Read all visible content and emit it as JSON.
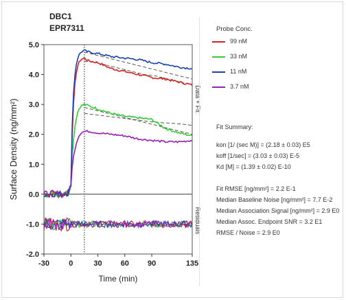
{
  "chart_data": {
    "type": "line",
    "title_lines": [
      "DBC1",
      "EPR7311"
    ],
    "xlabel": "Time (min)",
    "ylabel": "Surface Density (ng/mm²)",
    "xlim": [
      -30,
      135
    ],
    "ylim": [
      -2.0,
      5.0
    ],
    "x_ticks": [
      "-30",
      "0",
      "30",
      "60",
      "90",
      "135"
    ],
    "y_ticks": [
      "5.0",
      "4.0",
      "3.0",
      "2.0",
      "1.0",
      "0.0",
      "-1.0",
      "-2.0"
    ],
    "upper_panel_label": "Data + Fit",
    "lower_panel_label": "Residuals",
    "injection_end_x": 15,
    "legend_title": "Probe Conc.",
    "series": [
      {
        "name": "99 nM",
        "color": "#d42020",
        "x": [
          -30,
          -20,
          -10,
          -3,
          0,
          2,
          5,
          8,
          11,
          15,
          20,
          30,
          45,
          60,
          75,
          90,
          105,
          120,
          135
        ],
        "y": [
          0.0,
          0.02,
          0.0,
          0.05,
          0.3,
          2.6,
          3.9,
          4.35,
          4.5,
          4.55,
          4.45,
          4.4,
          4.2,
          4.1,
          4.0,
          3.9,
          3.85,
          3.75,
          3.65
        ],
        "fit_y": [
          4.45,
          4.4,
          4.3,
          4.2,
          4.1,
          4.0,
          3.95,
          3.85,
          3.75,
          3.65
        ]
      },
      {
        "name": "33 nM",
        "color": "#33cc33",
        "x": [
          -30,
          -20,
          -10,
          -3,
          0,
          2,
          5,
          8,
          11,
          15,
          20,
          30,
          45,
          60,
          75,
          90,
          105,
          120,
          135
        ],
        "y": [
          0.0,
          0.02,
          0.0,
          0.05,
          0.3,
          1.6,
          2.4,
          2.8,
          2.95,
          3.0,
          2.95,
          2.85,
          2.7,
          2.6,
          2.55,
          2.5,
          2.2,
          2.05,
          1.95
        ],
        "fit_y": [
          2.9,
          2.8,
          2.7,
          2.6,
          2.5,
          2.4,
          2.3,
          2.2,
          2.1,
          2.0
        ]
      },
      {
        "name": "11 nM",
        "color": "#1a3fb0",
        "x": [
          -30,
          -20,
          -10,
          -3,
          0,
          2,
          5,
          8,
          11,
          15,
          20,
          30,
          45,
          60,
          75,
          90,
          105,
          120,
          135
        ],
        "y": [
          0.0,
          0.02,
          0.0,
          0.05,
          0.3,
          3.0,
          4.2,
          4.6,
          4.75,
          4.8,
          4.75,
          4.7,
          4.6,
          4.55,
          4.5,
          4.4,
          4.35,
          4.25,
          4.2
        ],
        "fit_y": [
          4.75,
          4.65,
          4.55,
          4.45,
          4.35,
          4.25,
          4.15,
          4.05,
          3.95,
          3.85
        ]
      },
      {
        "name": "3.7 nM",
        "color": "#9b1fb5",
        "x": [
          -30,
          -20,
          -10,
          -3,
          0,
          2,
          5,
          8,
          11,
          15,
          20,
          30,
          45,
          60,
          75,
          90,
          105,
          120,
          135
        ],
        "y": [
          0.0,
          0.02,
          0.0,
          0.05,
          0.3,
          1.1,
          1.6,
          1.9,
          2.05,
          2.1,
          2.1,
          2.05,
          2.0,
          1.95,
          1.85,
          1.8,
          1.75,
          1.75,
          1.8
        ],
        "fit_y": [
          2.7,
          2.65,
          2.6,
          2.55,
          2.5,
          2.45,
          2.4,
          2.38,
          2.35,
          2.3
        ]
      }
    ]
  },
  "fit_summary": {
    "title": "Fit Summary:",
    "kon": "kon  [1/ (sec M)]  =  (2.18 ± 0.03) E5",
    "koff": "koff  [1/sec]  =  (3.03 ± 0.03) E-5",
    "kd": "Kd  [M]  =  (1.39 ± 0.02) E-10",
    "fit_rmse": "Fit RMSE [ng/mm²]  =  2.2 E-1",
    "baseline_noise": "Median Baseline Noise [ng/mm²]  =  7.7 E-2",
    "association_signal": "Median Association Signal [ng/mm²]  =  2.9 E0",
    "endpoint_snr": "Median Assoc. Endpoint SNR  =  3.2 E1",
    "rmse_noise": "RMSE / Noise  =  2.9 E0"
  }
}
